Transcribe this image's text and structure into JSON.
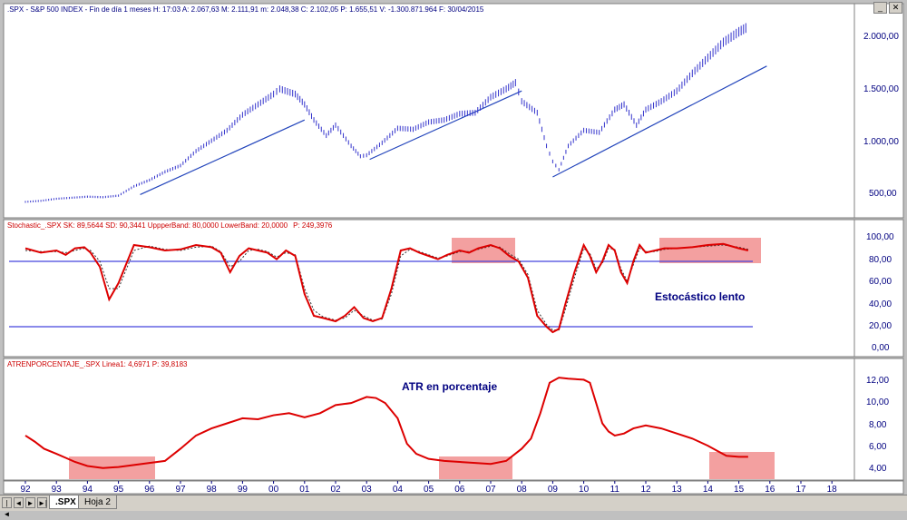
{
  "panel1": {
    "title": ".SPX - S&P 500 INDEX - Fin de día 1 meses  H: 17:03  A: 2.067,63  M: 2.111,91  m: 2.048,38  C: 2.102,05  P: 1.655,51  V: -1.300.871.964  F: 30/04/2015",
    "yticks": [
      "2.000,00",
      "1.500,00",
      "1.000,00",
      "500,00"
    ]
  },
  "panel2": {
    "title": "Stochastic_.SPX  SK: 89,5644  SD: 90,3441  UppperBand: 80,0000  LowerBand: 20,0000",
    "title_p": "P: 249,3976",
    "annotation": "Estocástico lento",
    "yticks": [
      "100,00",
      "80,00",
      "60,00",
      "40,00",
      "20,00",
      "0,00"
    ]
  },
  "panel3": {
    "title": "ATRENPORCENTAJE_.SPX  Linea1: 4,6971  P: 39,8183",
    "annotation": "ATR en porcentaje",
    "yticks": [
      "12,00",
      "10,00",
      "8,00",
      "6,00",
      "4,00"
    ]
  },
  "xaxis": {
    "labels": [
      "92",
      "93",
      "94",
      "95",
      "96",
      "97",
      "98",
      "99",
      "00",
      "01",
      "02",
      "03",
      "04",
      "05",
      "06",
      "07",
      "08",
      "09",
      "10",
      "11",
      "12",
      "13",
      "14",
      "15",
      "16",
      "17",
      "18"
    ]
  },
  "tabs": [
    ".SPX",
    "Hoja 2"
  ],
  "nav_buttons": [
    "|◄",
    "◄",
    "►",
    "►|"
  ],
  "window_buttons": [
    "_",
    "✕"
  ],
  "colors": {
    "price": "#3333cc",
    "trend": "#2244bb",
    "band": "#4444dd",
    "sk": "#dd0000",
    "sd": "#333333",
    "atr": "#dd0000",
    "highlight": "#ee7777",
    "axis_text": "#000080"
  },
  "chart_data": [
    {
      "type": "bar",
      "title": ".SPX - S&P 500 INDEX",
      "x": [
        1992.0,
        1992.5,
        1993.0,
        1993.5,
        1994.0,
        1994.5,
        1995.0,
        1995.5,
        1996.0,
        1996.5,
        1997.0,
        1997.5,
        1998.0,
        1998.5,
        1999.0,
        1999.5,
        2000.0,
        2000.2,
        2000.7,
        2001.0,
        2001.3,
        2001.7,
        2002.0,
        2002.5,
        2002.8,
        2003.0,
        2003.5,
        2004.0,
        2004.5,
        2005.0,
        2005.5,
        2006.0,
        2006.5,
        2007.0,
        2007.5,
        2007.8,
        2008.0,
        2008.5,
        2008.8,
        2009.0,
        2009.2,
        2009.5,
        2010.0,
        2010.5,
        2011.0,
        2011.3,
        2011.7,
        2012.0,
        2012.5,
        2013.0,
        2013.5,
        2014.0,
        2014.5,
        2015.0,
        2015.3
      ],
      "y": [
        410,
        420,
        440,
        450,
        460,
        455,
        470,
        560,
        620,
        700,
        760,
        900,
        1000,
        1100,
        1250,
        1350,
        1450,
        1500,
        1450,
        1350,
        1200,
        1050,
        1150,
        950,
        850,
        860,
        980,
        1120,
        1110,
        1180,
        1200,
        1260,
        1270,
        1420,
        1500,
        1560,
        1380,
        1270,
        950,
        800,
        720,
        950,
        1100,
        1080,
        1300,
        1350,
        1150,
        1300,
        1380,
        1480,
        1650,
        1800,
        1950,
        2050,
        2100
      ],
      "ylim": [
        300,
        2200
      ],
      "trendlines": [
        {
          "x": [
            1995.7,
            2001.0
          ],
          "y": [
            480,
            1200
          ]
        },
        {
          "x": [
            2003.1,
            2008.0
          ],
          "y": [
            820,
            1480
          ]
        },
        {
          "x": [
            2009.0,
            2015.9
          ],
          "y": [
            650,
            1720
          ]
        }
      ]
    },
    {
      "type": "line",
      "title": "Stochastic_.SPX",
      "x": [
        1992.0,
        1992.5,
        1993.0,
        1993.3,
        1993.6,
        1993.9,
        1994.1,
        1994.4,
        1994.7,
        1995.0,
        1995.5,
        1996.0,
        1996.5,
        1997.0,
        1997.5,
        1998.0,
        1998.3,
        1998.6,
        1998.9,
        1999.2,
        1999.5,
        1999.8,
        2000.1,
        2000.4,
        2000.7,
        2001.0,
        2001.3,
        2001.6,
        2002.0,
        2002.3,
        2002.6,
        2002.9,
        2003.2,
        2003.5,
        2003.8,
        2004.1,
        2004.4,
        2004.7,
        2005.0,
        2005.3,
        2005.6,
        2006.0,
        2006.3,
        2006.6,
        2007.0,
        2007.3,
        2007.6,
        2007.9,
        2008.2,
        2008.5,
        2008.8,
        2009.0,
        2009.2,
        2009.4,
        2009.7,
        2010.0,
        2010.2,
        2010.4,
        2010.6,
        2010.8,
        2011.0,
        2011.2,
        2011.4,
        2011.6,
        2011.8,
        2012.0,
        2012.3,
        2012.6,
        2013.0,
        2013.5,
        2014.0,
        2014.5,
        2015.0,
        2015.3
      ],
      "series": [
        {
          "values": [
            92,
            88,
            90,
            86,
            92,
            93,
            88,
            75,
            45,
            60,
            95,
            93,
            90,
            91,
            95,
            93,
            88,
            70,
            85,
            92,
            90,
            88,
            82,
            90,
            85,
            50,
            30,
            28,
            25,
            30,
            38,
            28,
            25,
            28,
            55,
            90,
            92,
            88,
            85,
            82,
            86,
            90,
            88,
            92,
            95,
            92,
            85,
            80,
            65,
            30,
            20,
            15,
            18,
            40,
            70,
            95,
            85,
            70,
            80,
            95,
            90,
            70,
            60,
            80,
            95,
            88,
            90,
            92,
            92,
            93,
            95,
            96,
            92,
            90
          ]
        },
        {
          "values": [
            90,
            89,
            89,
            88,
            90,
            92,
            90,
            80,
            55,
            55,
            90,
            94,
            91,
            90,
            93,
            94,
            89,
            75,
            80,
            90,
            91,
            89,
            84,
            88,
            86,
            55,
            35,
            29,
            26,
            28,
            35,
            30,
            26,
            27,
            50,
            85,
            91,
            89,
            86,
            83,
            85,
            89,
            89,
            91,
            94,
            93,
            87,
            82,
            68,
            35,
            22,
            17,
            17,
            35,
            65,
            92,
            87,
            73,
            78,
            92,
            91,
            73,
            62,
            77,
            92,
            89,
            89,
            91,
            92,
            93,
            94,
            95,
            93,
            91
          ]
        }
      ],
      "ylim": [
        -5,
        105
      ],
      "bands": [
        80,
        20
      ]
    },
    {
      "type": "line",
      "title": "ATRENPORCENTAJE_.SPX",
      "x": [
        1992.0,
        1992.3,
        1992.6,
        1993.0,
        1993.3,
        1993.6,
        1994.0,
        1994.5,
        1995.0,
        1995.5,
        1996.0,
        1996.5,
        1997.0,
        1997.5,
        1998.0,
        1998.5,
        1999.0,
        1999.5,
        2000.0,
        2000.5,
        2001.0,
        2001.5,
        2002.0,
        2002.5,
        2003.0,
        2003.3,
        2003.6,
        2004.0,
        2004.3,
        2004.6,
        2005.0,
        2005.5,
        2006.0,
        2006.5,
        2007.0,
        2007.5,
        2008.0,
        2008.3,
        2008.6,
        2008.9,
        2009.2,
        2009.5,
        2010.0,
        2010.2,
        2010.4,
        2010.6,
        2010.8,
        2011.0,
        2011.3,
        2011.6,
        2012.0,
        2012.5,
        2013.0,
        2013.5,
        2014.0,
        2014.3,
        2014.6,
        2015.0,
        2015.3
      ],
      "series": [
        {
          "name": "Linea1",
          "values": [
            6.8,
            6.2,
            5.5,
            5.0,
            4.6,
            4.2,
            3.8,
            3.6,
            3.7,
            3.9,
            4.1,
            4.3,
            5.5,
            6.8,
            7.5,
            8.0,
            8.5,
            8.4,
            8.8,
            9.0,
            8.6,
            9.0,
            9.8,
            10.0,
            10.6,
            10.5,
            10.0,
            8.5,
            6.0,
            5.0,
            4.5,
            4.3,
            4.2,
            4.1,
            4.0,
            4.3,
            5.5,
            6.5,
            9.0,
            12.0,
            12.5,
            12.4,
            12.3,
            12.0,
            10.0,
            8.0,
            7.2,
            6.8,
            7.0,
            7.5,
            7.8,
            7.5,
            7.0,
            6.5,
            5.8,
            5.3,
            4.8,
            4.7,
            4.7
          ]
        }
      ],
      "ylim": [
        2.5,
        13.5
      ]
    }
  ]
}
